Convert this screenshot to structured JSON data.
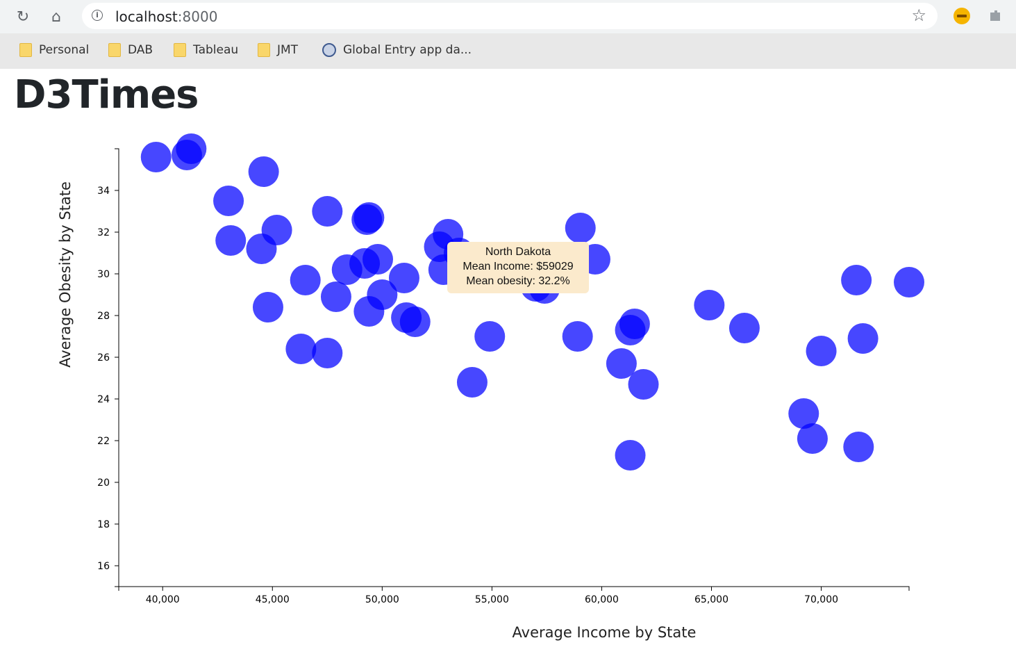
{
  "browser": {
    "url_host": "localhost",
    "url_port": ":8000",
    "bookmarks": [
      "Personal",
      "DAB",
      "Tableau",
      "JMT",
      "Global Entry app da..."
    ]
  },
  "page": {
    "title": "D3Times"
  },
  "tooltip": {
    "state": "North Dakota",
    "income_line": "Mean Income: $59029",
    "obesity_line": "Mean obesity: 32.2%"
  },
  "colors": {
    "point": "#0000ff",
    "tooltip_bg": "#fbeacc"
  },
  "chart_data": {
    "type": "scatter",
    "xlabel": "Average Income by State",
    "ylabel": "Average Obesity by State",
    "xlim": [
      38000,
      74000
    ],
    "ylim": [
      15,
      36
    ],
    "x_ticks": [
      40000,
      45000,
      50000,
      55000,
      60000,
      65000,
      70000
    ],
    "x_tick_labels": [
      "40,000",
      "45,000",
      "50,000",
      "55,000",
      "60,000",
      "65,000",
      "70,000"
    ],
    "y_ticks": [
      16,
      18,
      20,
      22,
      24,
      26,
      28,
      30,
      32,
      34
    ],
    "y_tick_labels": [
      "16",
      "18",
      "20",
      "22",
      "24",
      "26",
      "28",
      "30",
      "32",
      "34"
    ],
    "points": [
      {
        "x": 39700,
        "y": 35.6
      },
      {
        "x": 41100,
        "y": 35.7
      },
      {
        "x": 41300,
        "y": 36.0
      },
      {
        "x": 43000,
        "y": 33.5
      },
      {
        "x": 44600,
        "y": 34.9
      },
      {
        "x": 43100,
        "y": 31.6
      },
      {
        "x": 44500,
        "y": 31.2
      },
      {
        "x": 45200,
        "y": 32.1
      },
      {
        "x": 44800,
        "y": 28.4
      },
      {
        "x": 46500,
        "y": 29.7
      },
      {
        "x": 47500,
        "y": 33.0
      },
      {
        "x": 48400,
        "y": 30.2
      },
      {
        "x": 47900,
        "y": 28.9
      },
      {
        "x": 46300,
        "y": 26.4
      },
      {
        "x": 47500,
        "y": 26.2
      },
      {
        "x": 49300,
        "y": 32.6
      },
      {
        "x": 49400,
        "y": 32.7
      },
      {
        "x": 49200,
        "y": 30.5
      },
      {
        "x": 49800,
        "y": 30.7
      },
      {
        "x": 50000,
        "y": 29.0
      },
      {
        "x": 49400,
        "y": 28.2
      },
      {
        "x": 51000,
        "y": 29.8
      },
      {
        "x": 51100,
        "y": 27.9
      },
      {
        "x": 51500,
        "y": 27.7
      },
      {
        "x": 52600,
        "y": 31.3
      },
      {
        "x": 53000,
        "y": 31.9
      },
      {
        "x": 52800,
        "y": 30.2
      },
      {
        "x": 53500,
        "y": 31.0
      },
      {
        "x": 54900,
        "y": 27.0
      },
      {
        "x": 54100,
        "y": 24.8
      },
      {
        "x": 57000,
        "y": 29.4
      },
      {
        "x": 57400,
        "y": 29.3
      },
      {
        "x": 59029,
        "y": 32.2
      },
      {
        "x": 59700,
        "y": 30.7
      },
      {
        "x": 58900,
        "y": 27.0
      },
      {
        "x": 61500,
        "y": 27.6
      },
      {
        "x": 61300,
        "y": 27.3
      },
      {
        "x": 60900,
        "y": 25.7
      },
      {
        "x": 61900,
        "y": 24.7
      },
      {
        "x": 61300,
        "y": 21.3
      },
      {
        "x": 64900,
        "y": 28.5
      },
      {
        "x": 66500,
        "y": 27.4
      },
      {
        "x": 71600,
        "y": 29.7
      },
      {
        "x": 74000,
        "y": 29.6
      },
      {
        "x": 70000,
        "y": 26.3
      },
      {
        "x": 71900,
        "y": 26.9
      },
      {
        "x": 69200,
        "y": 23.3
      },
      {
        "x": 69600,
        "y": 22.1
      },
      {
        "x": 71700,
        "y": 21.7
      }
    ]
  }
}
